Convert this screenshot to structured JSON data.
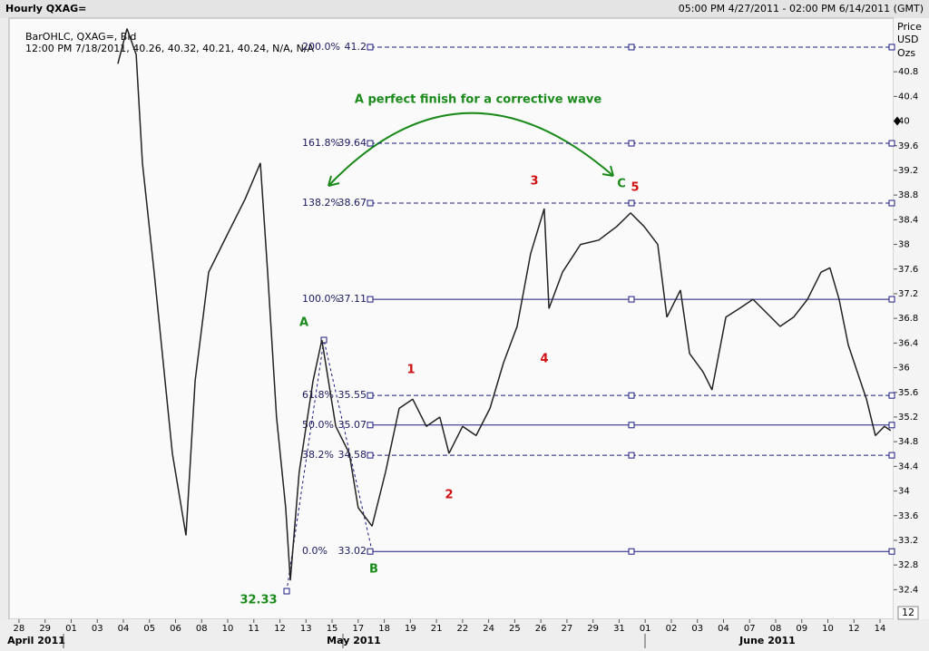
{
  "chart_data": {
    "type": "line",
    "title": "Hourly QXAG=",
    "subtitle": "05:00 PM 4/27/2011 - 02:00 PM 6/14/2011 (GMT)",
    "info": [
      "BarOHLC, QXAG=, Bid",
      "12:00 PM 7/18/2011, 40.26, 40.32, 40.21, 40.24, N/A, N/A"
    ],
    "y_axis_label": [
      "Price",
      "USD",
      "Ozs"
    ],
    "corner_label": "12",
    "months": [
      "April 2011",
      "May 2011",
      "June 2011"
    ],
    "x": [
      3.79,
      4.14,
      4.49,
      4.73,
      5.18,
      5.88,
      6.4,
      6.75,
      7.27,
      7.96,
      8.66,
      9.25,
      9.53,
      9.87,
      10.22,
      10.4,
      10.74,
      11.27,
      11.61,
      12.14,
      12.66,
      13.0,
      13.53,
      14.05,
      14.57,
      15.09,
      15.61,
      16.13,
      16.48,
      17.0,
      17.52,
      18.05,
      18.57,
      19.09,
      19.61,
      20.13,
      20.31,
      20.83,
      21.52,
      22.22,
      22.91,
      23.44,
      23.96,
      24.48,
      24.83,
      25.35,
      25.7,
      26.22,
      26.56,
      27.09,
      27.61,
      28.13,
      28.65,
      29.17,
      29.69,
      30.22,
      30.74,
      31.08,
      31.43,
      31.78,
      32.13,
      32.48,
      32.82,
      33.17,
      33.41
    ],
    "series": [
      {
        "name": "QXAG=",
        "color": "#222222",
        "values": [
          40.93,
          41.5,
          41.08,
          39.32,
          37.55,
          34.61,
          33.28,
          35.79,
          37.55,
          38.14,
          38.73,
          39.32,
          37.55,
          35.2,
          33.73,
          32.55,
          34.31,
          35.79,
          36.45,
          35.05,
          34.61,
          33.73,
          33.43,
          34.31,
          35.34,
          35.49,
          35.05,
          35.2,
          34.61,
          35.05,
          34.9,
          35.34,
          36.08,
          36.67,
          37.85,
          38.58,
          36.96,
          37.55,
          38.0,
          38.07,
          38.29,
          38.51,
          38.29,
          38.0,
          36.82,
          37.26,
          36.23,
          35.93,
          35.64,
          36.82,
          36.96,
          37.11,
          36.89,
          36.67,
          36.82,
          37.11,
          37.55,
          37.62,
          37.11,
          36.37,
          35.93,
          35.49,
          34.9,
          35.05,
          34.98
        ]
      }
    ],
    "xlim": [
      -0.38,
      33.52
    ],
    "xticks": [
      {
        "value": 0,
        "label": "28"
      },
      {
        "value": 1,
        "label": "29"
      },
      {
        "value": 2,
        "label": "01"
      },
      {
        "value": 3,
        "label": "03"
      },
      {
        "value": 4,
        "label": "04"
      },
      {
        "value": 5,
        "label": "05"
      },
      {
        "value": 6,
        "label": "06"
      },
      {
        "value": 7,
        "label": "08"
      },
      {
        "value": 8,
        "label": "10"
      },
      {
        "value": 9,
        "label": "11"
      },
      {
        "value": 10,
        "label": "12"
      },
      {
        "value": 11,
        "label": "13"
      },
      {
        "value": 12,
        "label": "15"
      },
      {
        "value": 13,
        "label": "17"
      },
      {
        "value": 14,
        "label": "18"
      },
      {
        "value": 15,
        "label": "19"
      },
      {
        "value": 16,
        "label": "21"
      },
      {
        "value": 17,
        "label": "22"
      },
      {
        "value": 18,
        "label": "24"
      },
      {
        "value": 19,
        "label": "25"
      },
      {
        "value": 20,
        "label": "26"
      },
      {
        "value": 21,
        "label": "27"
      },
      {
        "value": 22,
        "label": "29"
      },
      {
        "value": 23,
        "label": "31"
      },
      {
        "value": 24,
        "label": "01"
      },
      {
        "value": 25,
        "label": "02"
      },
      {
        "value": 26,
        "label": "03"
      },
      {
        "value": 27,
        "label": "04"
      },
      {
        "value": 28,
        "label": "07"
      },
      {
        "value": 29,
        "label": "08"
      },
      {
        "value": 30,
        "label": "09"
      },
      {
        "value": 31,
        "label": "10"
      },
      {
        "value": 32,
        "label": "12"
      },
      {
        "value": 33,
        "label": "14"
      }
    ],
    "ylim": [
      31.92,
      41.67
    ],
    "yticks": [
      32.4,
      32.8,
      33.2,
      33.6,
      34,
      34.4,
      34.8,
      35.2,
      35.6,
      36,
      36.4,
      36.8,
      37.2,
      37.6,
      38,
      38.4,
      38.8,
      39.2,
      39.6,
      40,
      40.4,
      40.8
    ],
    "fib_levels": [
      {
        "label": "200.0%",
        "value": 41.2,
        "dashed": true
      },
      {
        "label": "161.8%",
        "value": 39.64,
        "dashed": true
      },
      {
        "label": "138.2%",
        "value": 38.67,
        "dashed": true
      },
      {
        "label": "100.0%",
        "value": 37.11,
        "dashed": false
      },
      {
        "label": "61.8%",
        "value": 35.55,
        "dashed": true
      },
      {
        "label": "50.0%",
        "value": 35.07,
        "dashed": false
      },
      {
        "label": "38.2%",
        "value": 34.58,
        "dashed": true
      },
      {
        "label": "0.0%",
        "value": 33.02,
        "dashed": false
      }
    ],
    "fib_color": "#1a1a80",
    "annotations": [
      {
        "text": "A perfect finish for a corrective wave",
        "color": "#1a8a1a"
      },
      {
        "text": "A",
        "color": "#1a8a1a"
      },
      {
        "text": "B",
        "color": "#1a8a1a"
      },
      {
        "text": "C",
        "color": "#1a8a1a"
      },
      {
        "text": "32.33",
        "color": "#1a8a1a"
      },
      {
        "text": "1",
        "color": "#d01010"
      },
      {
        "text": "2",
        "color": "#d01010"
      },
      {
        "text": "3",
        "color": "#d01010"
      },
      {
        "text": "4",
        "color": "#d01010"
      },
      {
        "text": "5",
        "color": "#d01010"
      }
    ]
  }
}
